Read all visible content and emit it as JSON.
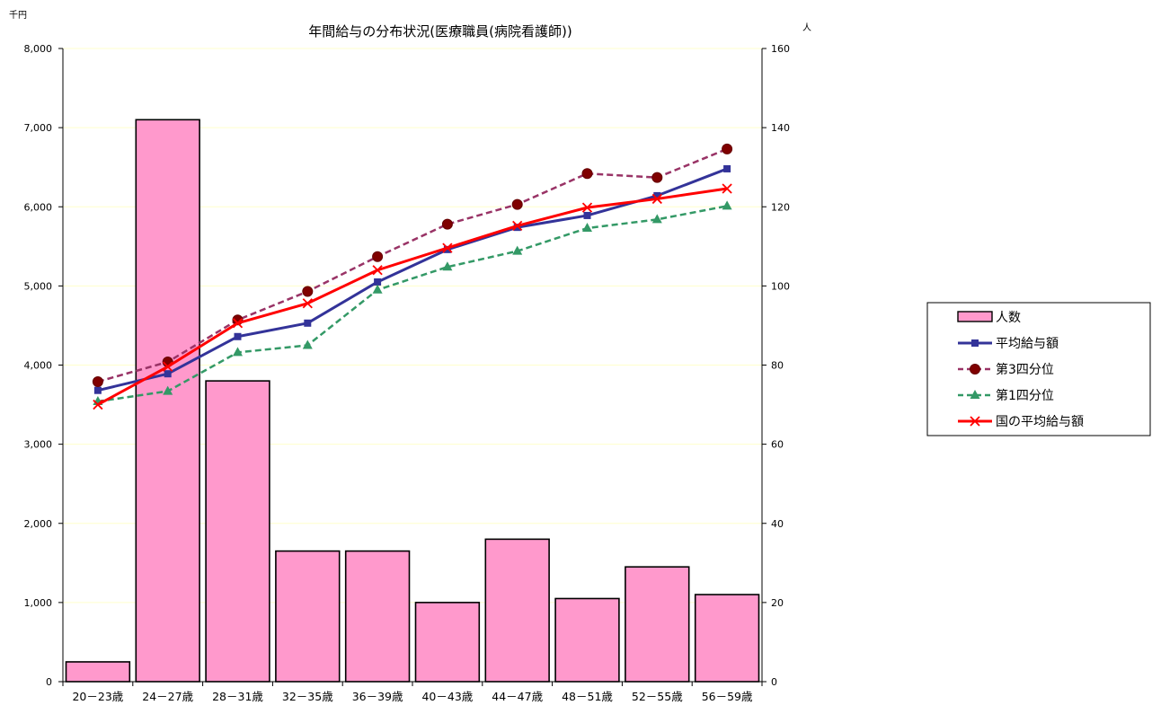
{
  "chart_data": {
    "type": "bar+line",
    "title": "年間給与の分布状況(医療職員(病院看護師))",
    "left_unit": "千円",
    "right_unit": "人",
    "categories": [
      "20－23歳",
      "24－27歳",
      "28－31歳",
      "32－35歳",
      "36－39歳",
      "40－43歳",
      "44－47歳",
      "48－51歳",
      "52－55歳",
      "56－59歳"
    ],
    "left_axis": {
      "min": 0,
      "max": 8000,
      "step": 1000,
      "tick_labels": [
        "0",
        "1,000",
        "2,000",
        "3,000",
        "4,000",
        "5,000",
        "6,000",
        "7,000",
        "8,000"
      ]
    },
    "right_axis": {
      "min": 0,
      "max": 160,
      "step": 20,
      "tick_labels": [
        "0",
        "20",
        "40",
        "60",
        "80",
        "100",
        "120",
        "140",
        "160"
      ]
    },
    "bar_series": {
      "name": "人数",
      "axis": "right",
      "color": "#FF99CC",
      "values": [
        5,
        142,
        76,
        33,
        33,
        20,
        36,
        21,
        29,
        22
      ]
    },
    "line_series": [
      {
        "name": "平均給与額",
        "axis": "left",
        "color": "#333399",
        "style": "solid",
        "marker": "square",
        "values": [
          3680,
          3890,
          4360,
          4530,
          5050,
          5460,
          5740,
          5890,
          6140,
          6480
        ]
      },
      {
        "name": "第3四分位",
        "axis": "left",
        "color": "#993366",
        "style": "dashed",
        "marker": "circle",
        "values": [
          3790,
          4040,
          4570,
          4930,
          5370,
          5780,
          6030,
          6420,
          6370,
          6730
        ]
      },
      {
        "name": "第1四分位",
        "axis": "left",
        "color": "#339966",
        "style": "dashed",
        "marker": "triangle",
        "values": [
          3540,
          3670,
          4160,
          4250,
          4950,
          5240,
          5440,
          5730,
          5840,
          6010
        ]
      },
      {
        "name": "国の平均給与額",
        "axis": "left",
        "color": "#FF0000",
        "style": "solid",
        "marker": "x",
        "values": [
          3500,
          3980,
          4530,
          4780,
          5200,
          5480,
          5760,
          5990,
          6100,
          6230
        ]
      }
    ],
    "legend_position": "right",
    "grid": true,
    "grid_color": "#FFFFCC"
  }
}
